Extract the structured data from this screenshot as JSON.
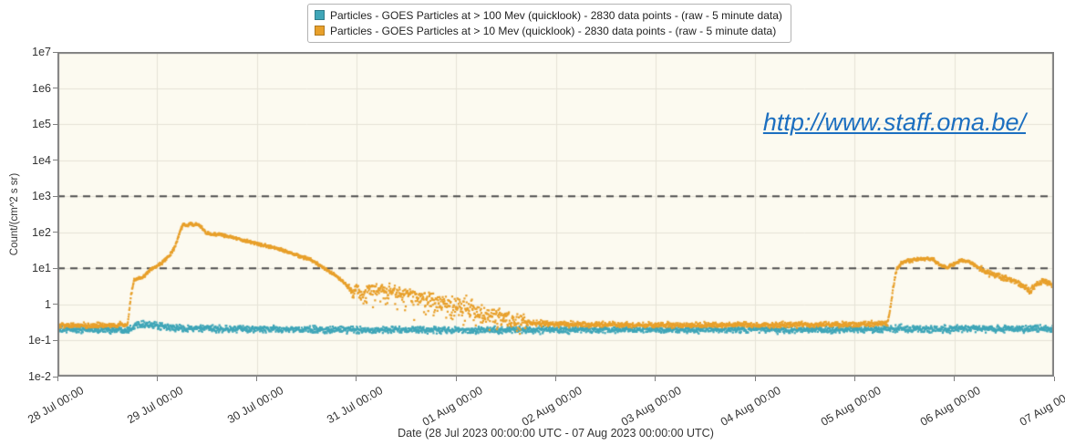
{
  "annotation": {
    "url_text": "http://www.staff.oma.be/",
    "color": "#1C6FC0"
  },
  "chart_data": {
    "type": "scatter",
    "title": "",
    "xlabel": "Date (28 Jul 2023 00:00:00 UTC - 07 Aug 2023 00:00:00 UTC)",
    "ylabel": "Count/(cm^2 s sr)",
    "y_scale": "log",
    "ylim": [
      0.01,
      10000000
    ],
    "x_range_days": [
      0,
      10
    ],
    "points_per_day": 283,
    "grid": true,
    "legend_position": "top-center",
    "x_tick_labels": [
      "28 Jul 00:00",
      "29 Jul 00:00",
      "30 Jul 00:00",
      "31 Jul 00:00",
      "01 Aug 00:00",
      "02 Aug 00:00",
      "03 Aug 00:00",
      "04 Aug 00:00",
      "05 Aug 00:00",
      "06 Aug 00:00",
      "07 Aug 00:00"
    ],
    "y_tick_labels": [
      "1e7",
      "1e6",
      "1e5",
      "1e4",
      "1e3",
      "1e2",
      "1e1",
      "1",
      "1e-1",
      "1e-2"
    ],
    "threshold_values": [
      1000,
      10
    ],
    "style": {
      "plot_bg": "#FCFAF0",
      "grid_color": "#E6E3D7",
      "frame_color": "#7F7F7F",
      "threshold_color": "#4D4D4D",
      "text_color": "#333333"
    },
    "series": [
      {
        "name": "Particles - GOES Particles at > 100 Mev (quicklook) - 2830 data points -  (raw - 5 minute data)",
        "color": "#3FA6B8",
        "sigma": 0.045,
        "keypoints": [
          [
            0.0,
            0.2
          ],
          [
            0.7,
            0.2
          ],
          [
            0.76,
            0.24
          ],
          [
            0.82,
            0.3
          ],
          [
            0.9,
            0.28
          ],
          [
            1.0,
            0.25
          ],
          [
            1.2,
            0.22
          ],
          [
            1.6,
            0.21
          ],
          [
            2.5,
            0.2
          ],
          [
            4.0,
            0.195
          ],
          [
            6.0,
            0.2
          ],
          [
            8.0,
            0.2
          ],
          [
            8.5,
            0.215
          ],
          [
            9.5,
            0.21
          ],
          [
            10.0,
            0.21
          ]
        ],
        "noise_windows": []
      },
      {
        "name": "Particles - GOES Particles at > 10 Mev (quicklook) - 2830 data points -  (raw - 5 minute data)",
        "color": "#E8A02B",
        "sigma": 0.035,
        "keypoints": [
          [
            0.0,
            0.26
          ],
          [
            0.4,
            0.26
          ],
          [
            0.7,
            0.27
          ],
          [
            0.72,
            0.6
          ],
          [
            0.74,
            2.0
          ],
          [
            0.77,
            4.5
          ],
          [
            0.8,
            5.2
          ],
          [
            0.86,
            5.6
          ],
          [
            0.92,
            8.5
          ],
          [
            1.0,
            11.5
          ],
          [
            1.06,
            15
          ],
          [
            1.12,
            22
          ],
          [
            1.17,
            35
          ],
          [
            1.21,
            70
          ],
          [
            1.24,
            130
          ],
          [
            1.27,
            168
          ],
          [
            1.3,
            148
          ],
          [
            1.33,
            175
          ],
          [
            1.36,
            158
          ],
          [
            1.39,
            168
          ],
          [
            1.44,
            145
          ],
          [
            1.49,
            97
          ],
          [
            1.54,
            88
          ],
          [
            1.65,
            86
          ],
          [
            1.75,
            74
          ],
          [
            1.86,
            61
          ],
          [
            2.0,
            49
          ],
          [
            2.12,
            40
          ],
          [
            2.25,
            33
          ],
          [
            2.4,
            23
          ],
          [
            2.55,
            17
          ],
          [
            2.68,
            10
          ],
          [
            2.8,
            6.0
          ],
          [
            2.9,
            3.5
          ],
          [
            2.96,
            2.1
          ],
          [
            3.02,
            2.6
          ],
          [
            3.06,
            1.7
          ],
          [
            3.12,
            2.7
          ],
          [
            3.2,
            2.8
          ],
          [
            3.3,
            2.5
          ],
          [
            3.42,
            2.1
          ],
          [
            3.55,
            1.8
          ],
          [
            3.7,
            1.4
          ],
          [
            3.85,
            1.1
          ],
          [
            3.95,
            0.95
          ],
          [
            4.05,
            1.0
          ],
          [
            4.15,
            0.75
          ],
          [
            4.3,
            0.55
          ],
          [
            4.45,
            0.42
          ],
          [
            4.6,
            0.34
          ],
          [
            4.8,
            0.3
          ],
          [
            5.2,
            0.28
          ],
          [
            6.0,
            0.27
          ],
          [
            7.0,
            0.27
          ],
          [
            8.0,
            0.28
          ],
          [
            8.33,
            0.29
          ],
          [
            8.36,
            0.9
          ],
          [
            8.39,
            3.5
          ],
          [
            8.42,
            9
          ],
          [
            8.46,
            13.5
          ],
          [
            8.52,
            16
          ],
          [
            8.6,
            17.5
          ],
          [
            8.7,
            18.5
          ],
          [
            8.78,
            18
          ],
          [
            8.85,
            13
          ],
          [
            8.92,
            10.5
          ],
          [
            9.0,
            13
          ],
          [
            9.07,
            16.5
          ],
          [
            9.13,
            16
          ],
          [
            9.2,
            12.5
          ],
          [
            9.3,
            8.5
          ],
          [
            9.42,
            6.3
          ],
          [
            9.52,
            5.2
          ],
          [
            9.62,
            4.2
          ],
          [
            9.7,
            3.1
          ],
          [
            9.76,
            2.4
          ],
          [
            9.82,
            3.6
          ],
          [
            9.88,
            4.6
          ],
          [
            9.94,
            3.9
          ],
          [
            10.0,
            3.4
          ]
        ],
        "noise_windows": [
          {
            "from": 0.73,
            "to": 2.92,
            "sigma": 0.02
          },
          {
            "from": 2.92,
            "to": 3.55,
            "sigma": 0.08,
            "spike_prob": 0.1,
            "spike_dex": 0.35
          },
          {
            "from": 3.55,
            "to": 4.7,
            "sigma": 0.13,
            "spike_prob": 0.14,
            "spike_dex": 0.45
          },
          {
            "from": 8.38,
            "to": 9.25,
            "sigma": 0.022
          },
          {
            "from": 9.25,
            "to": 10.01,
            "sigma": 0.04
          }
        ]
      }
    ]
  }
}
